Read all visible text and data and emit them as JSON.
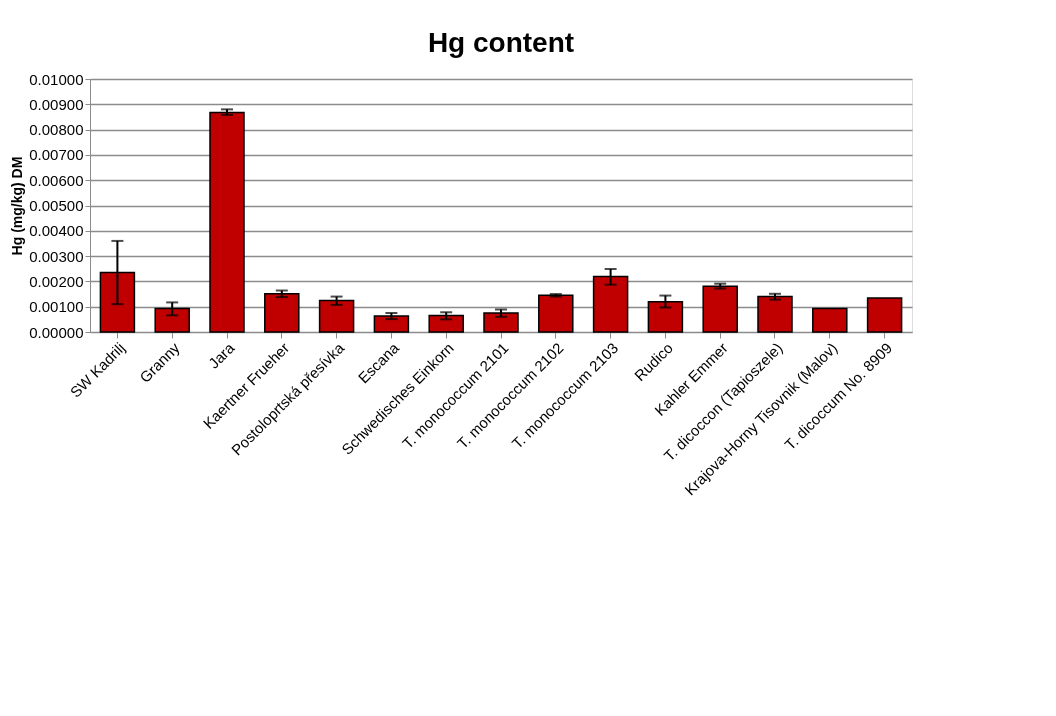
{
  "chart_data": {
    "type": "bar",
    "title": "Hg content",
    "ylabel": "Hg (mg/kg) DM",
    "categories": [
      "SW Kadrilj",
      "Granny",
      "Jara",
      "Kaertner Frueher",
      "Postoloprtská přesívka",
      "Escana",
      "Schwedisches Einkorn",
      "T. monococcum 2101",
      "T. monococcum 2102",
      "T. monococcum 2103",
      "Rudico",
      "Kahler Emmer",
      "T. dicoccon (Tapioszele)",
      "Krajova-Horny Tisovnik (Malov)",
      "T. dicoccum No. 8909"
    ],
    "values": [
      0.00235,
      0.00093,
      0.00868,
      0.00151,
      0.00125,
      0.00063,
      0.00065,
      0.00075,
      0.00145,
      0.00219,
      0.0012,
      0.00181,
      0.0014,
      0.00093,
      0.00134
    ],
    "errors": [
      [
        0.0011,
        0.0036
      ],
      [
        0.00066,
        0.00117
      ],
      [
        0.00858,
        0.0088
      ],
      [
        0.00138,
        0.00164
      ],
      [
        0.00107,
        0.0014
      ],
      [
        0.00051,
        0.00075
      ],
      [
        0.0005,
        0.00078
      ],
      [
        0.0006,
        0.00089
      ],
      [
        0.0014,
        0.0015
      ],
      [
        0.00187,
        0.00249
      ],
      [
        0.00097,
        0.00144
      ],
      [
        0.00172,
        0.00191
      ],
      [
        0.00128,
        0.00151
      ],
      null,
      null
    ],
    "color": "#c00000",
    "ylim": [
      0,
      0.01
    ],
    "yticks": [
      {
        "value": 0,
        "label": "0.00000"
      },
      {
        "value": 0.001,
        "label": "0.00100"
      },
      {
        "value": 0.002,
        "label": "0.00200"
      },
      {
        "value": 0.003,
        "label": "0.00300"
      },
      {
        "value": 0.004,
        "label": "0.00400"
      },
      {
        "value": 0.005,
        "label": "0.00500"
      },
      {
        "value": 0.006,
        "label": "0.00600"
      },
      {
        "value": 0.007,
        "label": "0.00700"
      },
      {
        "value": 0.008,
        "label": "0.00800"
      },
      {
        "value": 0.009,
        "label": "0.00900"
      },
      {
        "value": 0.01,
        "label": "0.01000"
      }
    ],
    "grid": "y",
    "legend": false
  }
}
